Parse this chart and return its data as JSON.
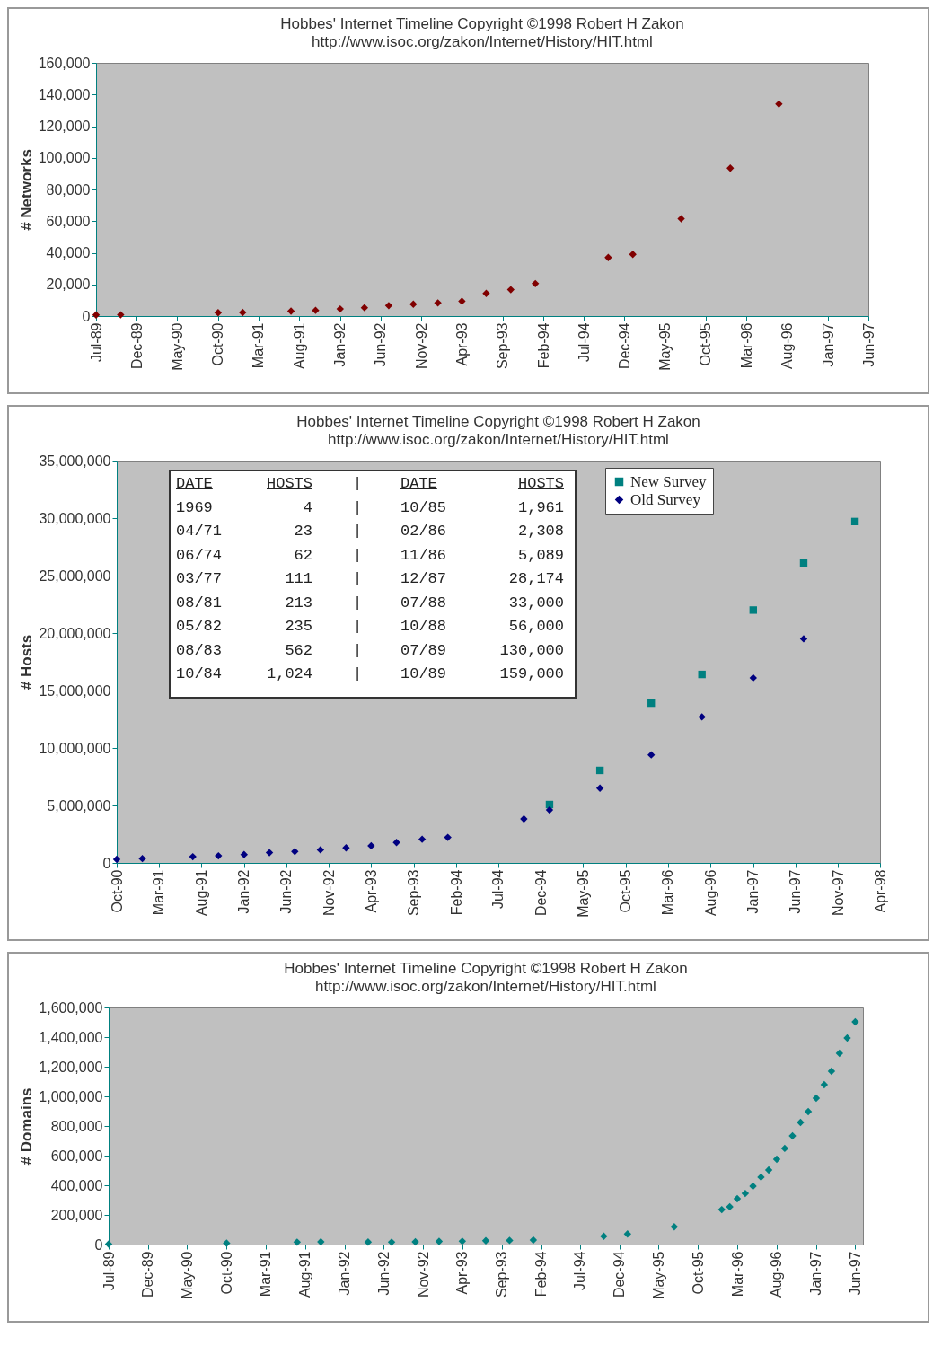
{
  "chart_data": [
    {
      "type": "scatter",
      "title": "Hobbes' Internet Timeline Copyright ©1998 Robert H Zakon",
      "subtitle": "http://www.isoc.org/zakon/Internet/History/HIT.html",
      "ylabel": "# Networks",
      "x": [
        "1989-07",
        "1989-10",
        "1990-10",
        "1991-01",
        "1991-07",
        "1991-10",
        "1992-01",
        "1992-04",
        "1992-07",
        "1992-10",
        "1993-01",
        "1993-04",
        "1993-07",
        "1993-10",
        "1994-01",
        "1994-10",
        "1995-01",
        "1995-07",
        "1996-01",
        "1996-07"
      ],
      "values": [
        700,
        800,
        2100,
        2300,
        3100,
        3600,
        4500,
        5300,
        6600,
        7500,
        8300,
        9400,
        14300,
        16700,
        20500,
        37000,
        39000,
        61500,
        93500,
        134000
      ],
      "color": "#800000",
      "marker": "diamond",
      "xlim": [
        "1989-07",
        "1997-06"
      ],
      "xticks": [
        {
          "value": "1989-07",
          "label": "Jul-89"
        },
        {
          "value": "1989-12",
          "label": "Dec-89"
        },
        {
          "value": "1990-05",
          "label": "May-90"
        },
        {
          "value": "1990-10",
          "label": "Oct-90"
        },
        {
          "value": "1991-03",
          "label": "Mar-91"
        },
        {
          "value": "1991-08",
          "label": "Aug-91"
        },
        {
          "value": "1992-01",
          "label": "Jan-92"
        },
        {
          "value": "1992-06",
          "label": "Jun-92"
        },
        {
          "value": "1992-11",
          "label": "Nov-92"
        },
        {
          "value": "1993-04",
          "label": "Apr-93"
        },
        {
          "value": "1993-09",
          "label": "Sep-93"
        },
        {
          "value": "1994-02",
          "label": "Feb-94"
        },
        {
          "value": "1994-07",
          "label": "Jul-94"
        },
        {
          "value": "1994-12",
          "label": "Dec-94"
        },
        {
          "value": "1995-05",
          "label": "May-95"
        },
        {
          "value": "1995-10",
          "label": "Oct-95"
        },
        {
          "value": "1996-03",
          "label": "Mar-96"
        },
        {
          "value": "1996-08",
          "label": "Aug-96"
        },
        {
          "value": "1997-01",
          "label": "Jan-97"
        },
        {
          "value": "1997-06",
          "label": "Jun-97"
        }
      ],
      "ylim": [
        0,
        160000
      ],
      "yticks": [
        {
          "value": 0,
          "label": "0"
        },
        {
          "value": 20000,
          "label": "20,000"
        },
        {
          "value": 40000,
          "label": "40,000"
        },
        {
          "value": 60000,
          "label": "60,000"
        },
        {
          "value": 80000,
          "label": "80,000"
        },
        {
          "value": 100000,
          "label": "100,000"
        },
        {
          "value": 120000,
          "label": "120,000"
        },
        {
          "value": 140000,
          "label": "140,000"
        },
        {
          "value": 160000,
          "label": "160,000"
        }
      ]
    },
    {
      "type": "scatter",
      "title": "Hobbes' Internet Timeline Copyright ©1998 Robert H Zakon",
      "subtitle": "http://www.isoc.org/zakon/Internet/History/HIT.html",
      "ylabel": "# Hosts",
      "series": [
        {
          "name": "New Survey",
          "color": "#008080",
          "marker": "square",
          "x": [
            "1995-01",
            "1995-07",
            "1996-01",
            "1996-07",
            "1997-01",
            "1997-07",
            "1998-01"
          ],
          "values": [
            5080000,
            8050000,
            13900000,
            16400000,
            22000000,
            26100000,
            29700000
          ]
        },
        {
          "name": "Old Survey",
          "color": "#000080",
          "marker": "diamond",
          "x": [
            "1990-10",
            "1991-01",
            "1991-07",
            "1991-10",
            "1992-01",
            "1992-04",
            "1992-07",
            "1992-10",
            "1993-01",
            "1993-04",
            "1993-07",
            "1993-10",
            "1994-01",
            "1994-10",
            "1995-01",
            "1995-07",
            "1996-01",
            "1996-07",
            "1997-01",
            "1997-07"
          ],
          "values": [
            310000,
            380000,
            540000,
            620000,
            730000,
            890000,
            990000,
            1140000,
            1310000,
            1490000,
            1780000,
            2060000,
            2220000,
            3830000,
            4600000,
            6500000,
            9400000,
            12700000,
            16100000,
            19500000
          ]
        }
      ],
      "legend": "top right",
      "xlim": [
        "1990-10",
        "1998-04"
      ],
      "xticks": [
        {
          "value": "1990-10",
          "label": "Oct-90"
        },
        {
          "value": "1991-03",
          "label": "Mar-91"
        },
        {
          "value": "1991-08",
          "label": "Aug-91"
        },
        {
          "value": "1992-01",
          "label": "Jan-92"
        },
        {
          "value": "1992-06",
          "label": "Jun-92"
        },
        {
          "value": "1992-11",
          "label": "Nov-92"
        },
        {
          "value": "1993-04",
          "label": "Apr-93"
        },
        {
          "value": "1993-09",
          "label": "Sep-93"
        },
        {
          "value": "1994-02",
          "label": "Feb-94"
        },
        {
          "value": "1994-07",
          "label": "Jul-94"
        },
        {
          "value": "1994-12",
          "label": "Dec-94"
        },
        {
          "value": "1995-05",
          "label": "May-95"
        },
        {
          "value": "1995-10",
          "label": "Oct-95"
        },
        {
          "value": "1996-03",
          "label": "Mar-96"
        },
        {
          "value": "1996-08",
          "label": "Aug-96"
        },
        {
          "value": "1997-01",
          "label": "Jan-97"
        },
        {
          "value": "1997-06",
          "label": "Jun-97"
        },
        {
          "value": "1997-11",
          "label": "Nov-97"
        },
        {
          "value": "1998-04",
          "label": "Apr-98"
        }
      ],
      "ylim": [
        0,
        35000000
      ],
      "yticks": [
        {
          "value": 0,
          "label": "0"
        },
        {
          "value": 5000000,
          "label": "5,000,000"
        },
        {
          "value": 10000000,
          "label": "10,000,000"
        },
        {
          "value": 15000000,
          "label": "15,000,000"
        },
        {
          "value": 20000000,
          "label": "20,000,000"
        },
        {
          "value": 25000000,
          "label": "25,000,000"
        },
        {
          "value": 30000000,
          "label": "30,000,000"
        },
        {
          "value": 35000000,
          "label": "35,000,000"
        }
      ],
      "annotations": [
        "DATE",
        "HOSTS",
        "|",
        "DATE",
        "HOSTS",
        "1969",
        "4",
        "|",
        "10/85",
        "1,961",
        "04/71",
        "23",
        "|",
        "02/86",
        "2,308",
        "06/74",
        "62",
        "|",
        "11/86",
        "5,089",
        "03/77",
        "111",
        "|",
        "12/87",
        "28,174",
        "08/81",
        "213",
        "|",
        "07/88",
        "33,000",
        "05/82",
        "235",
        "|",
        "10/88",
        "56,000",
        "08/83",
        "562",
        "|",
        "07/89",
        "130,000",
        "10/84",
        "1,024",
        "|",
        "10/89",
        "159,000"
      ]
    },
    {
      "type": "scatter",
      "title": "Hobbes' Internet Timeline Copyright ©1998 Robert H Zakon",
      "subtitle": "http://www.isoc.org/zakon/Internet/History/HIT.html",
      "ylabel": "# Domains",
      "x": [
        "1989-07",
        "1990-10",
        "1991-07",
        "1991-10",
        "1992-04",
        "1992-07",
        "1992-10",
        "1993-01",
        "1993-04",
        "1993-07",
        "1993-10",
        "1994-01",
        "1994-10",
        "1995-01",
        "1995-07",
        "1996-01",
        "1996-02",
        "1996-03",
        "1996-04",
        "1996-05",
        "1996-06",
        "1996-07",
        "1996-08",
        "1996-09",
        "1996-10",
        "1996-11",
        "1996-12",
        "1997-01",
        "1997-02",
        "1997-03",
        "1997-04",
        "1997-05",
        "1997-06"
      ],
      "values": [
        3000,
        9000,
        16000,
        18000,
        17000,
        16000,
        18000,
        21000,
        22000,
        26000,
        28000,
        30000,
        56000,
        71000,
        120000,
        236000,
        255000,
        309000,
        345000,
        394000,
        455000,
        503000,
        576000,
        649000,
        733000,
        824000,
        897000,
        988000,
        1079000,
        1170000,
        1291000,
        1394000,
        1503000
      ],
      "color": "#008080",
      "marker": "diamond",
      "xlim": [
        "1989-07",
        "1997-07"
      ],
      "xticks": [
        {
          "value": "1989-07",
          "label": "Jul-89"
        },
        {
          "value": "1989-12",
          "label": "Dec-89"
        },
        {
          "value": "1990-05",
          "label": "May-90"
        },
        {
          "value": "1990-10",
          "label": "Oct-90"
        },
        {
          "value": "1991-03",
          "label": "Mar-91"
        },
        {
          "value": "1991-08",
          "label": "Aug-91"
        },
        {
          "value": "1992-01",
          "label": "Jan-92"
        },
        {
          "value": "1992-06",
          "label": "Jun-92"
        },
        {
          "value": "1992-11",
          "label": "Nov-92"
        },
        {
          "value": "1993-04",
          "label": "Apr-93"
        },
        {
          "value": "1993-09",
          "label": "Sep-93"
        },
        {
          "value": "1994-02",
          "label": "Feb-94"
        },
        {
          "value": "1994-07",
          "label": "Jul-94"
        },
        {
          "value": "1994-12",
          "label": "Dec-94"
        },
        {
          "value": "1995-05",
          "label": "May-95"
        },
        {
          "value": "1995-10",
          "label": "Oct-95"
        },
        {
          "value": "1996-03",
          "label": "Mar-96"
        },
        {
          "value": "1996-08",
          "label": "Aug-96"
        },
        {
          "value": "1997-01",
          "label": "Jan-97"
        },
        {
          "value": "1997-06",
          "label": "Jun-97"
        }
      ],
      "ylim": [
        0,
        1600000
      ],
      "yticks": [
        {
          "value": 0,
          "label": "0"
        },
        {
          "value": 200000,
          "label": "200,000"
        },
        {
          "value": 400000,
          "label": "400,000"
        },
        {
          "value": 600000,
          "label": "600,000"
        },
        {
          "value": 800000,
          "label": "800,000"
        },
        {
          "value": 1000000,
          "label": "1,000,000"
        },
        {
          "value": 1200000,
          "label": "1,200,000"
        },
        {
          "value": 1400000,
          "label": "1,400,000"
        },
        {
          "value": 1600000,
          "label": "1,600,000"
        }
      ]
    }
  ]
}
